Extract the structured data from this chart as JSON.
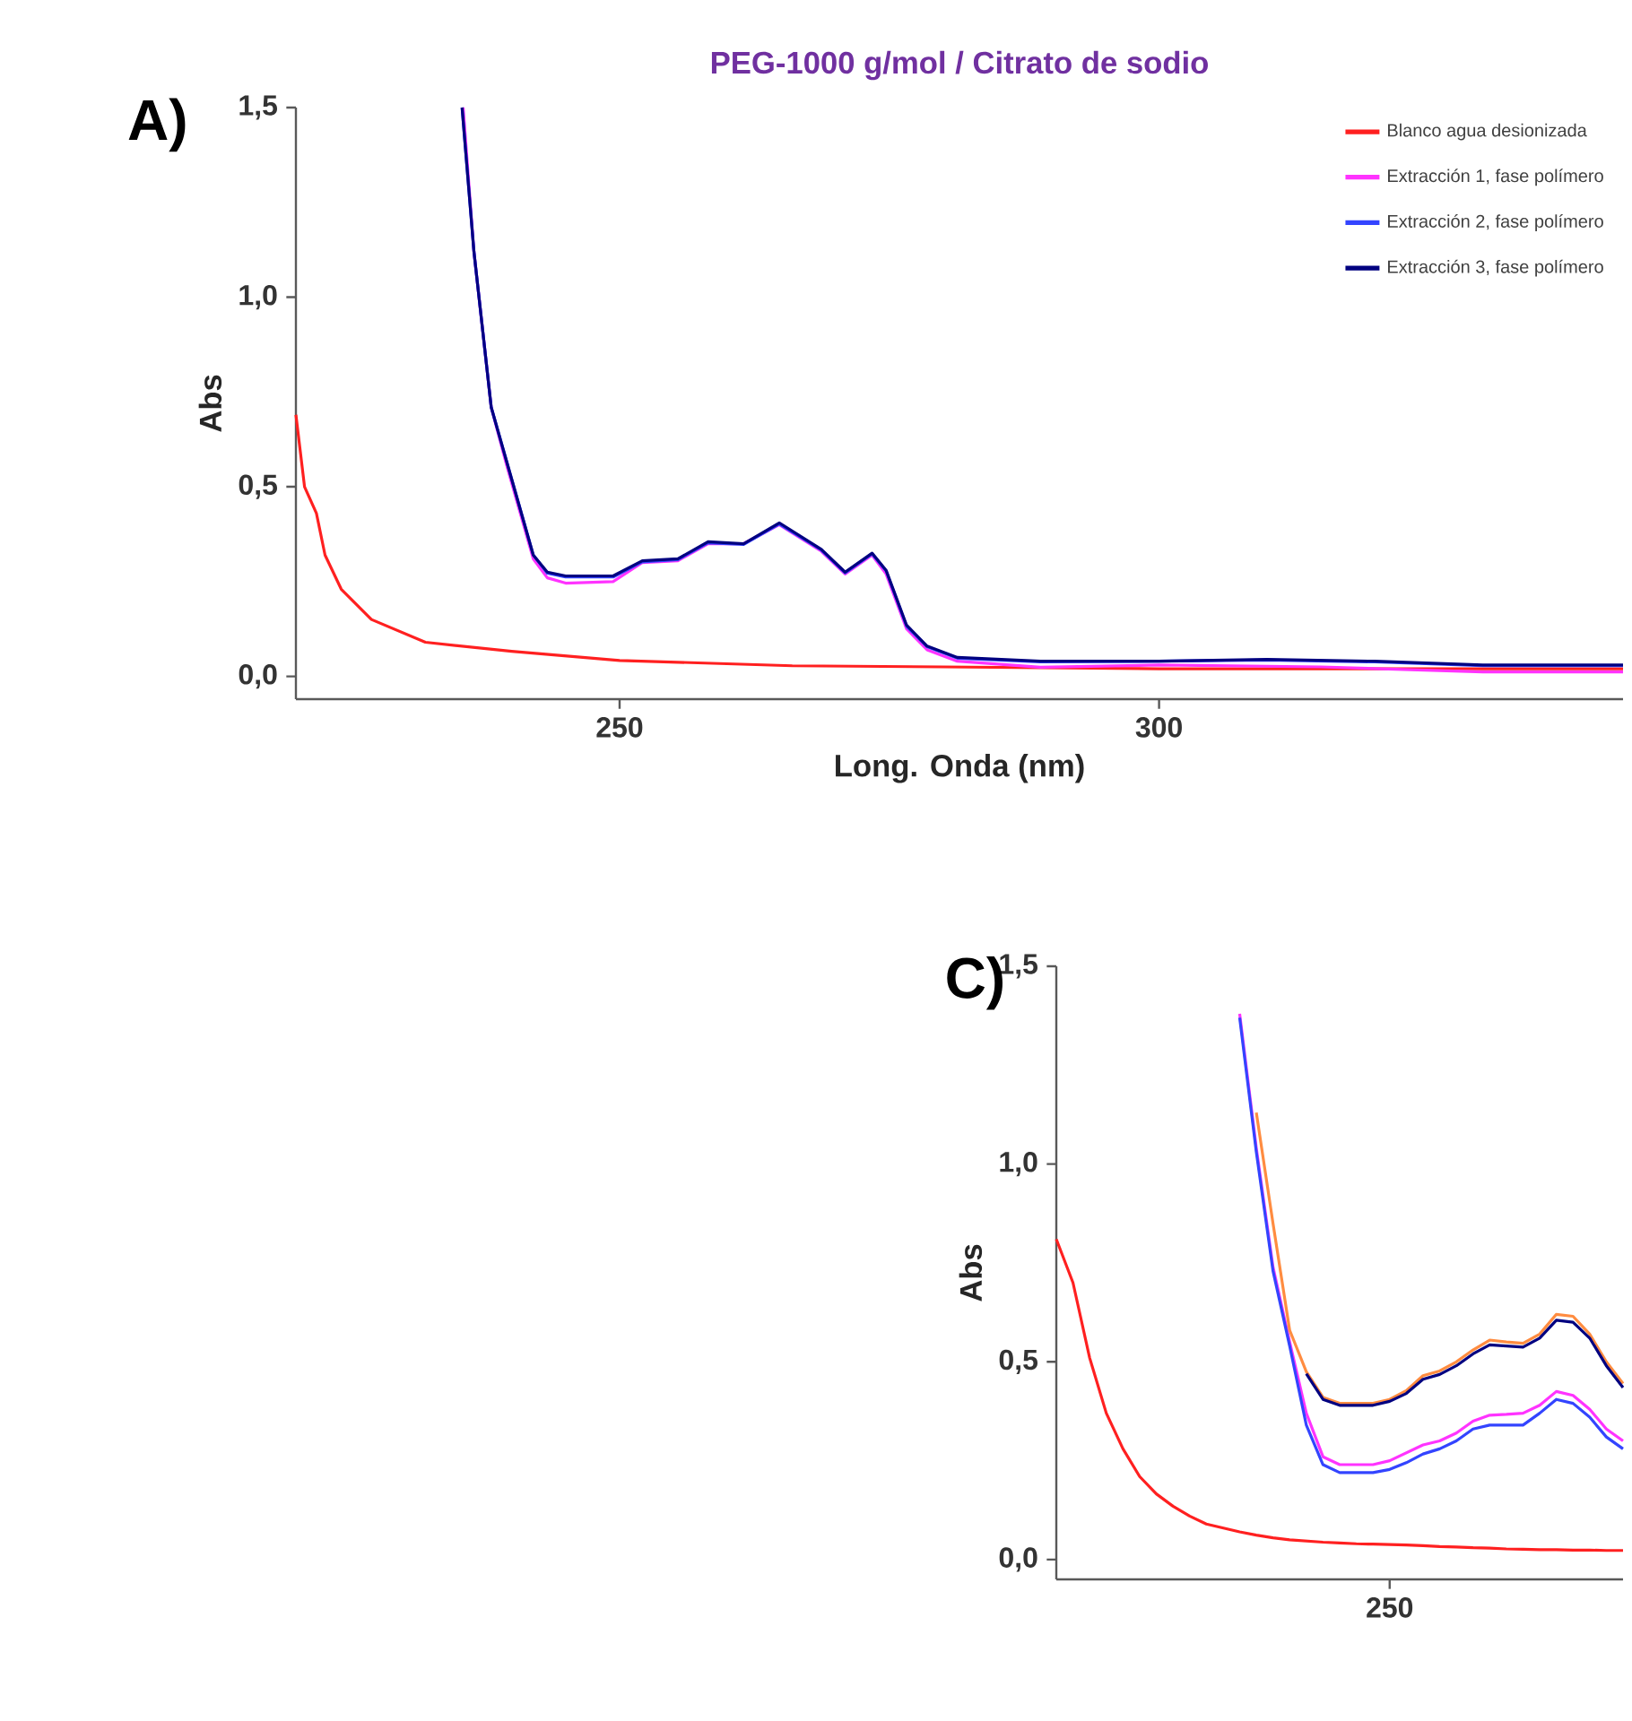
{
  "chart_data": [
    {
      "type": "line",
      "title": "PEG-1000 g/mol / Citrato de sodio",
      "xlabel": "Long. Onda (nm)",
      "ylabel": "Abs",
      "annotations": [
        "A)"
      ],
      "xlim": [
        220,
        343
      ],
      "ylim": [
        -0.06,
        1.5
      ],
      "xticks": [
        250,
        300
      ],
      "yticks": [
        {
          "value": 0,
          "label": "0,0"
        },
        {
          "value": 0.5,
          "label": "0,5"
        },
        {
          "value": 1.0,
          "label": "1,0"
        },
        {
          "value": 1.5,
          "label": "1,5"
        }
      ],
      "grid": false,
      "legend": "top right",
      "marker": "none",
      "line_style": "solid",
      "series": [
        {
          "name": "Blanco agua desionizada",
          "color": "#ff2020",
          "x": [
            220,
            220.8,
            221.9,
            222.7,
            224.2,
            227,
            232,
            240,
            250,
            266,
            280,
            300,
            343
          ],
          "values": [
            0.69,
            0.5,
            0.43,
            0.32,
            0.23,
            0.15,
            0.09,
            0.066,
            0.042,
            0.028,
            0.025,
            0.02,
            0.02
          ]
        },
        {
          "name": "Extracción 1, fase polímero",
          "color": "#ff33ff",
          "x": [
            235.5,
            236.5,
            238.1,
            239.5,
            240.6,
            242,
            243.3,
            245,
            249.4,
            252.1,
            255.4,
            258.2,
            261.5,
            264.8,
            268.7,
            270.9,
            273.4,
            274.7,
            276.6,
            278.5,
            281.3,
            289,
            300,
            315,
            330,
            343
          ],
          "values": [
            1.5,
            1.12,
            0.71,
            0.56,
            0.45,
            0.31,
            0.26,
            0.246,
            0.25,
            0.3,
            0.305,
            0.35,
            0.35,
            0.4,
            0.33,
            0.27,
            0.32,
            0.27,
            0.125,
            0.07,
            0.04,
            0.024,
            0.03,
            0.025,
            0.012,
            0.012
          ]
        },
        {
          "name": "Extracción 2, fase polímero",
          "color": "#3344ff",
          "x": [
            235.4,
            236.5,
            238.1,
            239.5,
            240.6,
            242,
            243.3,
            245,
            249.4,
            252.1,
            255.4,
            258.2,
            261.5,
            264.8,
            268.7,
            270.9,
            273.4,
            274.7,
            276.6,
            278.5,
            281.3,
            289,
            300,
            310,
            320,
            330,
            343
          ],
          "values": [
            1.5,
            1.12,
            0.71,
            0.57,
            0.46,
            0.32,
            0.272,
            0.262,
            0.262,
            0.302,
            0.308,
            0.352,
            0.348,
            0.402,
            0.333,
            0.273,
            0.323,
            0.278,
            0.132,
            0.078,
            0.048,
            0.038,
            0.04,
            0.043,
            0.038,
            0.028,
            0.028
          ]
        },
        {
          "name": "Extracción 3, fase polímero",
          "color": "#000080",
          "x": [
            235.4,
            236.5,
            238.1,
            239.5,
            240.6,
            242,
            243.3,
            245,
            249.4,
            252.1,
            255.4,
            258.2,
            261.5,
            264.8,
            268.7,
            270.9,
            273.4,
            274.7,
            276.6,
            278.5,
            281.3,
            289,
            300,
            310,
            320,
            330,
            343
          ],
          "values": [
            1.5,
            1.12,
            0.71,
            0.57,
            0.46,
            0.32,
            0.275,
            0.265,
            0.265,
            0.305,
            0.31,
            0.355,
            0.35,
            0.405,
            0.335,
            0.275,
            0.325,
            0.28,
            0.135,
            0.08,
            0.05,
            0.04,
            0.04,
            0.045,
            0.04,
            0.03,
            0.03
          ]
        }
      ]
    },
    {
      "type": "line",
      "ylabel": "Abs",
      "annotations": [
        "C)"
      ],
      "categories": [
        null,
        null,
        null,
        null,
        null,
        null,
        null,
        null,
        null,
        null,
        null,
        null,
        null,
        null,
        null,
        null,
        null,
        null,
        null,
        null,
        "250",
        null,
        null,
        null,
        null,
        null,
        null,
        null,
        null,
        null,
        null,
        null,
        null,
        null,
        null
      ],
      "ylim": [
        -0.05,
        1.5
      ],
      "yticks": [
        {
          "value": 0,
          "label": "0,0"
        },
        {
          "value": 0.5,
          "label": "0,5"
        },
        {
          "value": 1.0,
          "label": "1,0"
        },
        {
          "value": 1.5,
          "label": "1,5"
        }
      ],
      "grid": false,
      "marker": "none",
      "line_style": "solid",
      "series": [
        {
          "color": "#ff2020",
          "values": [
            0.81,
            0.7,
            0.51,
            0.37,
            0.28,
            0.21,
            0.166,
            0.135,
            0.11,
            0.09,
            0.08,
            0.07,
            0.062,
            0.055,
            0.05,
            0.047,
            0.044,
            0.042,
            0.04,
            0.039,
            0.038,
            0.037,
            0.035,
            0.033,
            0.032,
            0.03,
            0.029,
            0.027,
            0.026,
            0.025,
            0.025,
            0.024,
            0.024,
            0.023,
            0.023
          ]
        },
        {
          "color": "#ff33ff",
          "values": [
            null,
            null,
            null,
            null,
            null,
            null,
            null,
            null,
            null,
            null,
            null,
            1.38,
            1.04,
            0.74,
            0.55,
            0.37,
            0.26,
            0.24,
            0.24,
            0.24,
            0.25,
            0.27,
            0.29,
            0.3,
            0.32,
            0.35,
            0.365,
            0.367,
            0.37,
            0.39,
            0.425,
            0.415,
            0.38,
            0.33,
            0.3
          ]
        },
        {
          "color": "#3344ff",
          "values": [
            null,
            null,
            null,
            null,
            null,
            null,
            null,
            null,
            null,
            null,
            null,
            1.37,
            1.03,
            0.73,
            0.54,
            0.34,
            0.24,
            0.22,
            0.22,
            0.22,
            0.228,
            0.245,
            0.267,
            0.28,
            0.3,
            0.33,
            0.34,
            0.34,
            0.34,
            0.37,
            0.405,
            0.395,
            0.36,
            0.31,
            0.28
          ]
        },
        {
          "color": "#ff8c40",
          "values": [
            null,
            null,
            null,
            null,
            null,
            null,
            null,
            null,
            null,
            null,
            null,
            null,
            1.13,
            0.85,
            0.58,
            0.475,
            0.41,
            0.395,
            0.395,
            0.395,
            0.405,
            0.427,
            0.465,
            0.477,
            0.5,
            0.53,
            0.555,
            0.55,
            0.547,
            0.57,
            0.62,
            0.615,
            0.57,
            0.5,
            0.445
          ]
        },
        {
          "color": "#000080",
          "values": [
            null,
            null,
            null,
            null,
            null,
            null,
            null,
            null,
            null,
            null,
            null,
            null,
            null,
            null,
            null,
            0.47,
            0.405,
            0.39,
            0.39,
            0.39,
            0.4,
            0.42,
            0.456,
            0.468,
            0.49,
            0.52,
            0.543,
            0.54,
            0.537,
            0.56,
            0.605,
            0.6,
            0.56,
            0.49,
            0.435
          ]
        }
      ]
    }
  ]
}
